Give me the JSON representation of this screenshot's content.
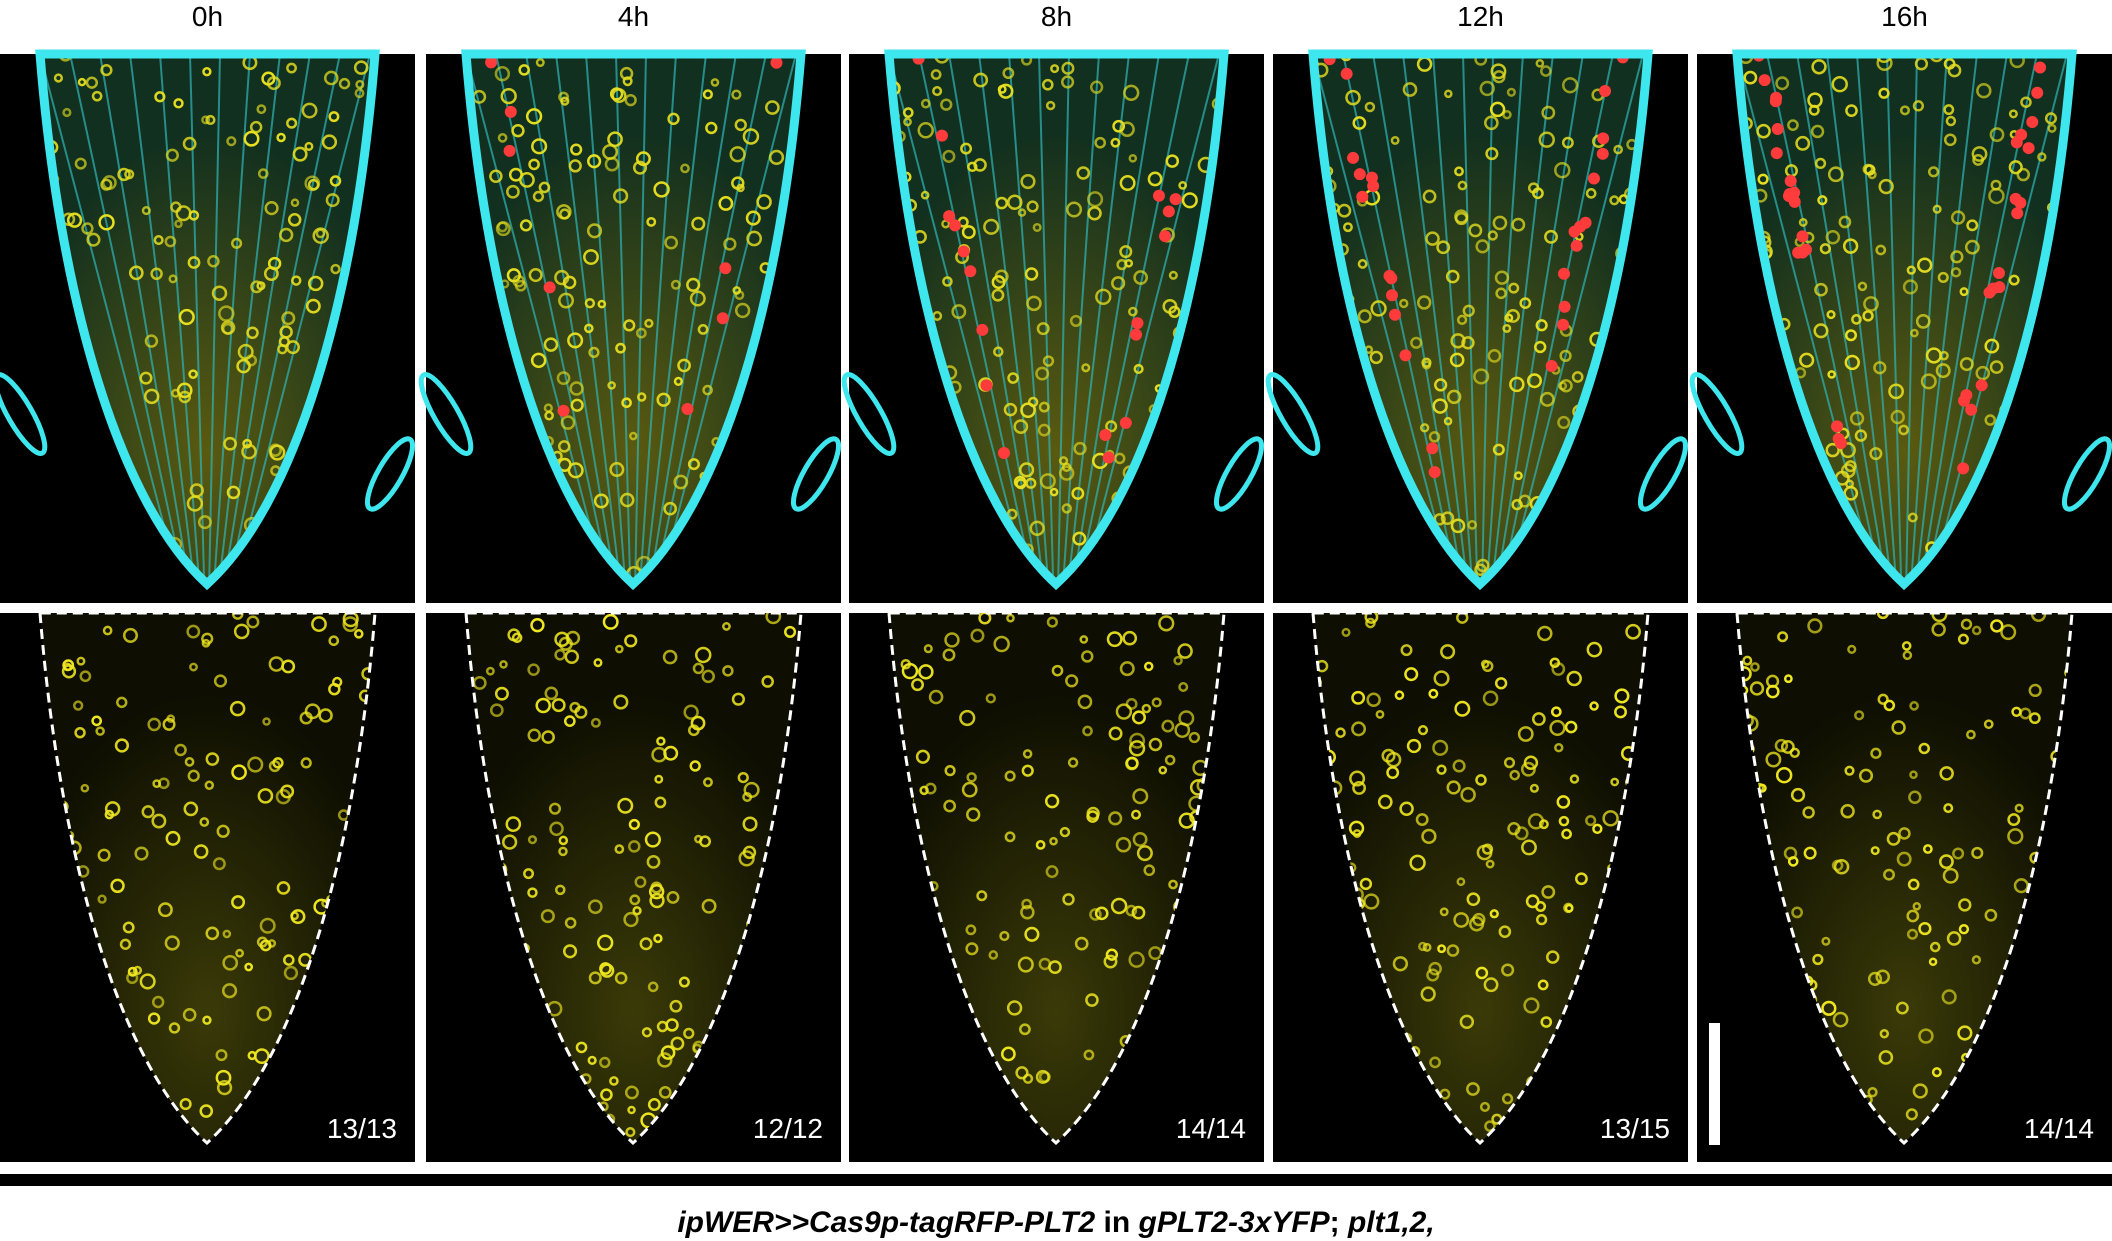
{
  "panels": [
    {
      "time": "0h",
      "ratio": "13/13"
    },
    {
      "time": "4h",
      "ratio": "12/12"
    },
    {
      "time": "8h",
      "ratio": "14/14"
    },
    {
      "time": "12h",
      "ratio": "13/15"
    },
    {
      "time": "16h",
      "ratio": "14/14"
    }
  ],
  "caption": {
    "parts": [
      "ipWER>>Cas9p-tagRFP-PLT2",
      " in ",
      "gPLT2-3xYFP",
      "; ",
      "plt1,2,"
    ]
  }
}
